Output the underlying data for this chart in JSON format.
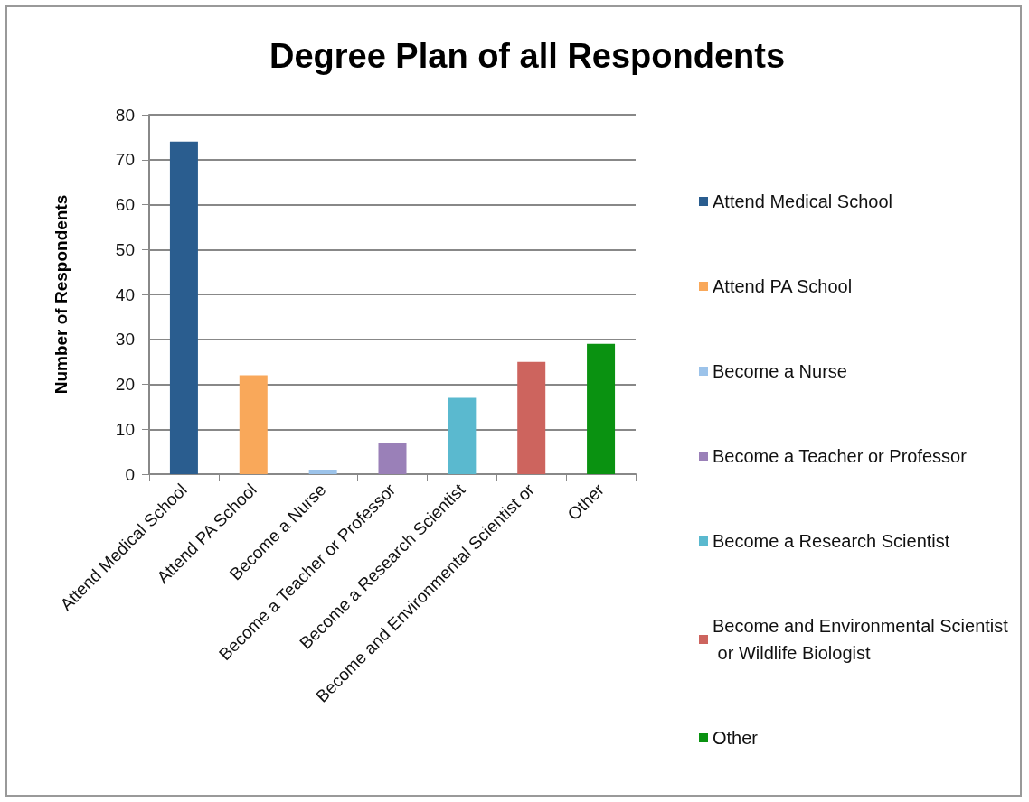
{
  "chart_data": {
    "type": "bar",
    "title": "Degree Plan of all Respondents",
    "ylabel": "Number of Respondents",
    "categories": [
      "Attend Medical School",
      "Attend PA School",
      "Become a Nurse",
      "Become a Teacher or Professor",
      "Become a Research Scientist",
      "Become and Environmental Scientist or",
      "Other"
    ],
    "series": [
      {
        "name": "Attend Medical School",
        "color": "#2a5d8f",
        "values": [
          74,
          null,
          null,
          null,
          null,
          null,
          null
        ]
      },
      {
        "name": "Attend PA School",
        "color": "#f9a85a",
        "values": [
          null,
          22,
          null,
          null,
          null,
          null,
          null
        ]
      },
      {
        "name": "Become a Nurse",
        "color": "#9cc3ea",
        "values": [
          null,
          null,
          1,
          null,
          null,
          null,
          null
        ]
      },
      {
        "name": "Become a Teacher or Professor",
        "color": "#9a80b8",
        "values": [
          null,
          null,
          null,
          7,
          null,
          null,
          null
        ]
      },
      {
        "name": "Become a Research Scientist",
        "color": "#5ab9cf",
        "values": [
          null,
          null,
          null,
          null,
          17,
          null,
          null
        ]
      },
      {
        "name": "Become and Environmental Scientist or Wildlife Biologist",
        "color": "#cd645e",
        "values": [
          null,
          null,
          null,
          null,
          null,
          25,
          null
        ]
      },
      {
        "name": "Other",
        "color": "#0a9211",
        "values": [
          null,
          null,
          null,
          null,
          null,
          null,
          29
        ]
      }
    ],
    "stacked": true,
    "ylim": [
      0,
      80
    ],
    "yticks": [
      0,
      10,
      20,
      30,
      40,
      50,
      60,
      70,
      80
    ],
    "grid": "y",
    "legend": "right"
  }
}
